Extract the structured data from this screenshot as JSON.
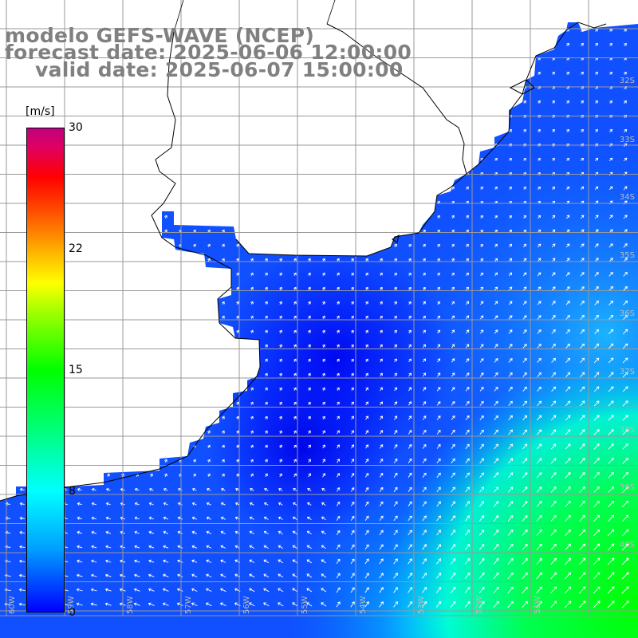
{
  "title": {
    "line1": "modelo GEFS-WAVE (NCEP)",
    "line2": "forecast date: 2025-06-06 12:00:00",
    "line3": "valid date: 2025-06-07 15:00:00"
  },
  "colorbar": {
    "unit": "[m/s]",
    "ticks": [
      "30",
      "22",
      "15",
      "8",
      "0"
    ],
    "tick_values": [
      30,
      22,
      15,
      8,
      0
    ],
    "range": [
      0,
      30
    ],
    "colors": [
      "#0000ff",
      "#00ffff",
      "#00ff00",
      "#ffff00",
      "#ff0000",
      "#c00080"
    ]
  },
  "map": {
    "land_color": "#ffffff",
    "grid_color": "#999999",
    "coast_color": "#000000",
    "field": "wind speed",
    "lat_labels": [
      "32S",
      "33S",
      "34S",
      "35S",
      "36S",
      "37S",
      "38S",
      "39S",
      "40S"
    ],
    "lon_labels": [
      "60W",
      "59W",
      "58W",
      "57W",
      "56W",
      "55W",
      "54W",
      "53W",
      "52W",
      "51W"
    ]
  }
}
